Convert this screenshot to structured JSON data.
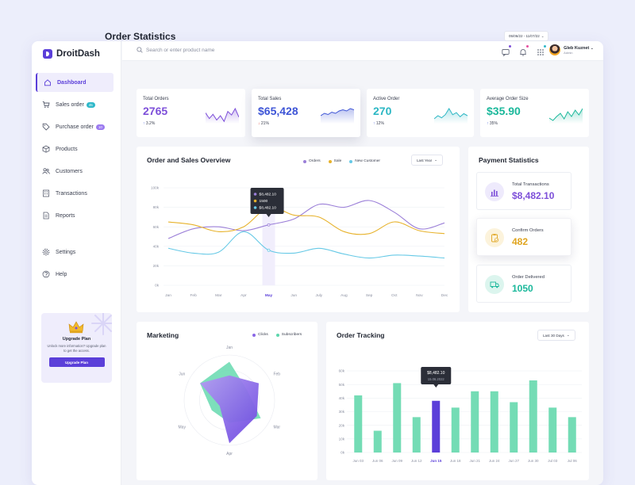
{
  "brand": {
    "name": "DroitDash",
    "accent": "#5b3fd9"
  },
  "search": {
    "placeholder": "Search or enter product name"
  },
  "header": {
    "user_name": "Gleb Kuznet",
    "user_role": "Admin",
    "icons": [
      "chat-icon",
      "bell-icon",
      "apps-grid-icon"
    ]
  },
  "sidebar": {
    "items": [
      {
        "label": "Dashboard",
        "icon": "home-icon",
        "active": true
      },
      {
        "label": "Sales order",
        "icon": "cart-icon",
        "badge": "45",
        "badge_color": "#2eb8c9"
      },
      {
        "label": "Purchase order",
        "icon": "tag-icon",
        "badge": "10",
        "badge_color": "#9b7af0"
      },
      {
        "label": "Products",
        "icon": "box-icon"
      },
      {
        "label": "Customers",
        "icon": "users-icon"
      },
      {
        "label": "Transactions",
        "icon": "building-icon"
      },
      {
        "label": "Reports",
        "icon": "document-icon"
      }
    ],
    "bottom_items": [
      {
        "label": "Settings",
        "icon": "gear-icon"
      },
      {
        "label": "Help",
        "icon": "help-icon"
      }
    ],
    "upgrade": {
      "title": "Upgrade Plan",
      "text": "Unlock more information? Upgrade plan to get the access.",
      "button": "Upgrade Plan"
    }
  },
  "page": {
    "title": "Order Statistics",
    "date_range": "05/06/22 - 11/07/22"
  },
  "stats": [
    {
      "label": "Total Orders",
      "value": "2765",
      "delta": "3.2%",
      "dir": "up",
      "color": "#7d4fd9",
      "spark": [
        14,
        6,
        12,
        4,
        10,
        2,
        16,
        11,
        20,
        8
      ]
    },
    {
      "label": "Total Sales",
      "value": "$65,428",
      "delta": "21%",
      "dir": "down",
      "color": "#3e55d6",
      "spark": [
        6,
        8,
        7,
        9,
        8,
        10,
        11,
        10,
        12,
        11
      ]
    },
    {
      "label": "Active Order",
      "value": "270",
      "delta": "12%",
      "dir": "up",
      "color": "#2cb7c4",
      "spark": [
        4,
        7,
        5,
        8,
        14,
        8,
        10,
        6,
        9,
        7
      ]
    },
    {
      "label": "Average Order Size",
      "value": "$35.90",
      "delta": "35%",
      "dir": "up",
      "color": "#1bb89b",
      "spark": [
        6,
        3,
        8,
        12,
        5,
        14,
        8,
        16,
        10,
        18
      ]
    }
  ],
  "overview": {
    "title": "Order and Sales Overview",
    "filter": "Last Year",
    "tooltip": [
      "$8,482.10",
      "1500",
      "$8,482.10"
    ],
    "chart_data": {
      "type": "line",
      "categories": [
        "Jan",
        "Feb",
        "Mar",
        "Apr",
        "May",
        "Jun",
        "July",
        "Aug",
        "Sep",
        "Oct",
        "Nov",
        "Dec"
      ],
      "y_ticks": [
        "0k",
        "20k",
        "40k",
        "60k",
        "80k",
        "100k"
      ],
      "ylim": [
        0,
        100
      ],
      "highlight": "May",
      "series": [
        {
          "name": "Orders",
          "color": "#9b7fd8",
          "values": [
            48,
            58,
            60,
            56,
            62,
            68,
            83,
            80,
            87,
            75,
            58,
            64
          ]
        },
        {
          "name": "Sale",
          "color": "#e7b22b",
          "values": [
            65,
            62,
            55,
            60,
            80,
            72,
            70,
            55,
            53,
            65,
            56,
            53
          ]
        },
        {
          "name": "New Customer",
          "color": "#66c9e6",
          "values": [
            38,
            33,
            34,
            55,
            36,
            33,
            38,
            32,
            28,
            31,
            30,
            28
          ]
        }
      ]
    }
  },
  "payment": {
    "title": "Payment Statistics",
    "items": [
      {
        "label": "Total Transactions",
        "value": "$8,482.10",
        "icon": "chart-bars-icon",
        "color": "#7d4fd9",
        "bg": "#eeeafc"
      },
      {
        "label": "Confirm Orders",
        "value": "482",
        "icon": "clipboard-check-icon",
        "color": "#e0a51f",
        "bg": "#fcf3dc"
      },
      {
        "label": "Order Delivered",
        "value": "1050",
        "icon": "truck-icon",
        "color": "#1bb89b",
        "bg": "#dcf5ee"
      }
    ]
  },
  "marketing": {
    "title": "Marketing",
    "legend": [
      {
        "name": "Clicks",
        "color": "#8a67e6"
      },
      {
        "name": "Subscribers",
        "color": "#5dd6ad"
      }
    ],
    "chart_data": {
      "type": "radar",
      "axes": [
        "Jan",
        "Feb",
        "Mar",
        "Apr",
        "May",
        "Jun"
      ],
      "series": [
        {
          "name": "Clicks",
          "values": [
            55,
            75,
            70,
            95,
            25,
            75
          ]
        },
        {
          "name": "Subscribers",
          "values": [
            85,
            45,
            80,
            50,
            45,
            75
          ]
        }
      ]
    }
  },
  "tracking": {
    "title": "Order Tracking",
    "filter": "Last 30 Days",
    "tooltip": [
      "$8,482.10",
      "15.06.2022"
    ],
    "chart_data": {
      "type": "bar",
      "categories": [
        "Jun 03",
        "Jun 06",
        "Jun 09",
        "Jun 12",
        "Jun 15",
        "Jun 18",
        "Jun 21",
        "Jun 24",
        "Jun 27",
        "Jun 30",
        "Jul 03",
        "Jul 06"
      ],
      "y_ticks": [
        "0k",
        "10k",
        "20k",
        "30k",
        "40k",
        "50k",
        "60k"
      ],
      "ylim": [
        0,
        60
      ],
      "values": [
        42,
        16,
        51,
        26,
        38,
        33,
        45,
        45,
        37,
        53,
        33,
        26
      ],
      "highlight": "Jun 15",
      "bar_color": "#74dcb5",
      "highlight_color": "#5b3fd9"
    }
  }
}
